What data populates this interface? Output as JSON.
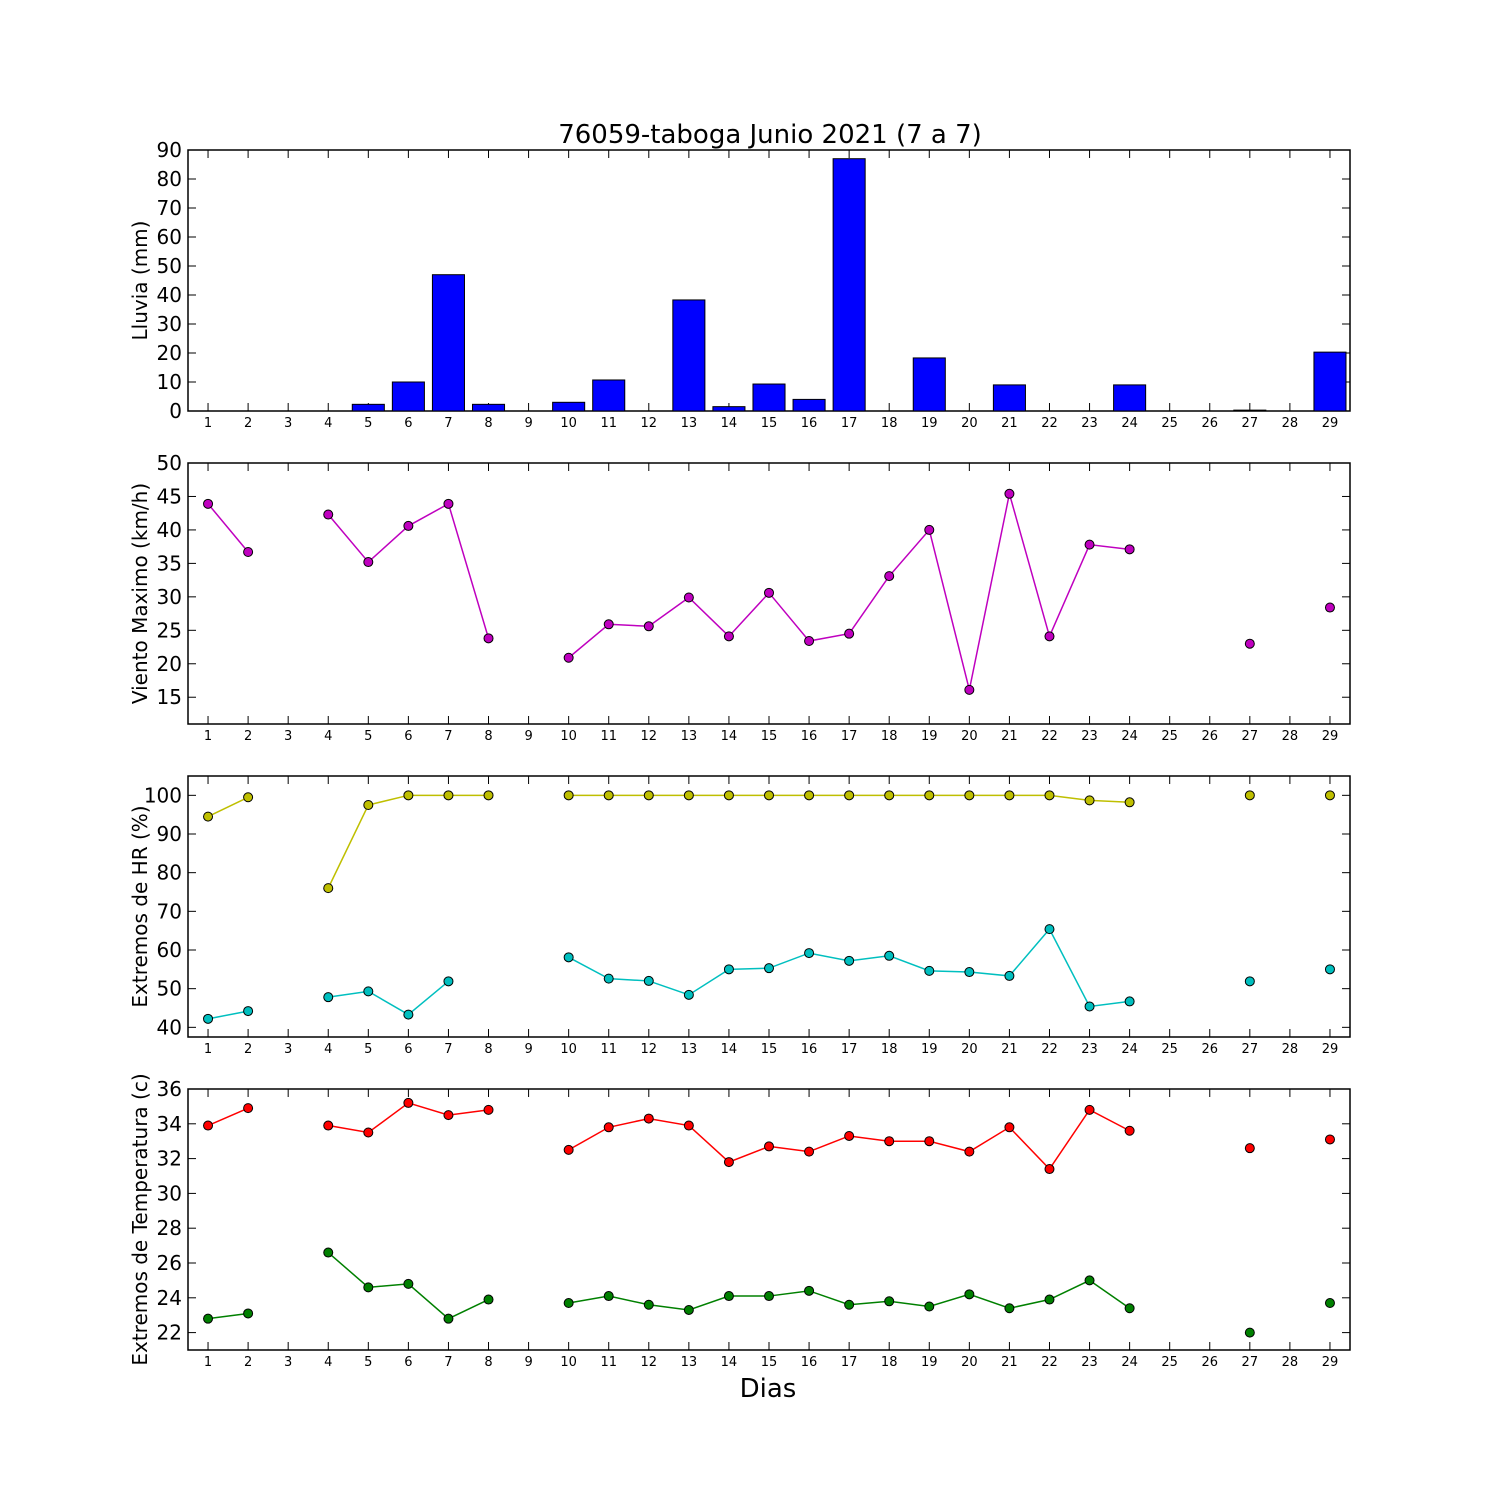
{
  "figure": {
    "title": "76059-taboga Junio 2021  (7 a 7)",
    "xlabel": "Dias"
  },
  "chart_data": [
    {
      "type": "bar",
      "ylabel": "Lluvia (mm)",
      "ylim": [
        0,
        90
      ],
      "yticks": [
        0,
        10,
        20,
        30,
        40,
        50,
        60,
        70,
        80,
        90
      ],
      "x": [
        1,
        2,
        3,
        4,
        5,
        6,
        7,
        8,
        9,
        10,
        11,
        12,
        13,
        14,
        15,
        16,
        17,
        18,
        19,
        20,
        21,
        22,
        23,
        24,
        25,
        26,
        27,
        28,
        29
      ],
      "xticks": [
        1,
        2,
        3,
        4,
        5,
        6,
        7,
        8,
        9,
        10,
        11,
        12,
        13,
        14,
        15,
        16,
        17,
        18,
        19,
        20,
        21,
        22,
        23,
        24,
        25,
        26,
        27,
        28,
        29
      ],
      "xlim": [
        0.5,
        29.5
      ],
      "grid": false,
      "series": [
        {
          "color": "#0000ff",
          "values": [
            0,
            0,
            0,
            0,
            2.3,
            10,
            47,
            2.3,
            0,
            3,
            10.7,
            0,
            38.3,
            1.5,
            9.3,
            4,
            87,
            0,
            18.3,
            0,
            9,
            0,
            0,
            9,
            0,
            0,
            0.3,
            0,
            20.3
          ]
        }
      ]
    },
    {
      "type": "line",
      "ylabel": "Viento Maximo (km/h)",
      "ylim": [
        11,
        50
      ],
      "yticks": [
        15,
        20,
        25,
        30,
        35,
        40,
        45,
        50
      ],
      "x": [
        1,
        2,
        3,
        4,
        5,
        6,
        7,
        8,
        9,
        10,
        11,
        12,
        13,
        14,
        15,
        16,
        17,
        18,
        19,
        20,
        21,
        22,
        23,
        24,
        25,
        26,
        27,
        28,
        29
      ],
      "xticks": [
        1,
        2,
        3,
        4,
        5,
        6,
        7,
        8,
        9,
        10,
        11,
        12,
        13,
        14,
        15,
        16,
        17,
        18,
        19,
        20,
        21,
        22,
        23,
        24,
        25,
        26,
        27,
        28,
        29
      ],
      "xlim": [
        0.5,
        29.5
      ],
      "grid": false,
      "series": [
        {
          "color": "#bf00bf",
          "values": [
            43.9,
            36.7,
            null,
            42.3,
            35.2,
            40.6,
            43.9,
            23.8,
            null,
            20.9,
            25.9,
            25.6,
            29.9,
            24.1,
            30.6,
            23.4,
            24.5,
            33.1,
            40.0,
            16.1,
            45.4,
            24.1,
            37.8,
            37.1,
            null,
            null,
            23.0,
            null,
            28.4
          ]
        }
      ]
    },
    {
      "type": "line",
      "ylabel": "Extremos de HR (%)",
      "ylim": [
        37.5,
        105
      ],
      "yticks": [
        40,
        50,
        60,
        70,
        80,
        90,
        100
      ],
      "x": [
        1,
        2,
        3,
        4,
        5,
        6,
        7,
        8,
        9,
        10,
        11,
        12,
        13,
        14,
        15,
        16,
        17,
        18,
        19,
        20,
        21,
        22,
        23,
        24,
        25,
        26,
        27,
        28,
        29
      ],
      "xticks": [
        1,
        2,
        3,
        4,
        5,
        6,
        7,
        8,
        9,
        10,
        11,
        12,
        13,
        14,
        15,
        16,
        17,
        18,
        19,
        20,
        21,
        22,
        23,
        24,
        25,
        26,
        27,
        28,
        29
      ],
      "xlim": [
        0.5,
        29.5
      ],
      "grid": false,
      "series": [
        {
          "color": "#bfbf00",
          "values": [
            94.5,
            99.5,
            null,
            76,
            97.5,
            100,
            100,
            100,
            null,
            100,
            100,
            100,
            100,
            100,
            100,
            100,
            100,
            100,
            100,
            100,
            100,
            100,
            98.7,
            98.2,
            null,
            null,
            100,
            null,
            100
          ]
        },
        {
          "color": "#00bfbf",
          "values": [
            42.2,
            44.2,
            null,
            47.8,
            49.3,
            43.3,
            51.9,
            null,
            null,
            58.1,
            52.6,
            52.0,
            48.4,
            55.0,
            55.3,
            59.2,
            57.2,
            58.5,
            54.6,
            54.3,
            53.3,
            65.4,
            45.4,
            46.7,
            null,
            null,
            51.9,
            null,
            55.0
          ]
        }
      ]
    },
    {
      "type": "line",
      "ylabel": "Extremos de Temperatura (c)",
      "ylim": [
        21,
        36
      ],
      "yticks": [
        22,
        24,
        26,
        28,
        30,
        32,
        34,
        36
      ],
      "x": [
        1,
        2,
        3,
        4,
        5,
        6,
        7,
        8,
        9,
        10,
        11,
        12,
        13,
        14,
        15,
        16,
        17,
        18,
        19,
        20,
        21,
        22,
        23,
        24,
        25,
        26,
        27,
        28,
        29
      ],
      "xticks": [
        1,
        2,
        3,
        4,
        5,
        6,
        7,
        8,
        9,
        10,
        11,
        12,
        13,
        14,
        15,
        16,
        17,
        18,
        19,
        20,
        21,
        22,
        23,
        24,
        25,
        26,
        27,
        28,
        29
      ],
      "xlim": [
        0.5,
        29.5
      ],
      "grid": false,
      "series": [
        {
          "color": "#ff0000",
          "values": [
            33.9,
            34.9,
            null,
            33.9,
            33.5,
            35.2,
            34.5,
            34.8,
            null,
            32.5,
            33.8,
            34.3,
            33.9,
            31.8,
            32.7,
            32.4,
            33.3,
            33.0,
            33.0,
            32.4,
            33.8,
            31.4,
            34.8,
            33.6,
            null,
            null,
            32.6,
            null,
            33.1
          ]
        },
        {
          "color": "#008000",
          "values": [
            22.8,
            23.1,
            null,
            26.6,
            24.6,
            24.8,
            22.8,
            23.9,
            null,
            23.7,
            24.1,
            23.6,
            23.3,
            24.1,
            24.1,
            24.4,
            23.6,
            23.8,
            23.5,
            24.2,
            23.4,
            23.9,
            25.0,
            23.4,
            null,
            null,
            22.0,
            null,
            23.7
          ]
        }
      ]
    }
  ]
}
